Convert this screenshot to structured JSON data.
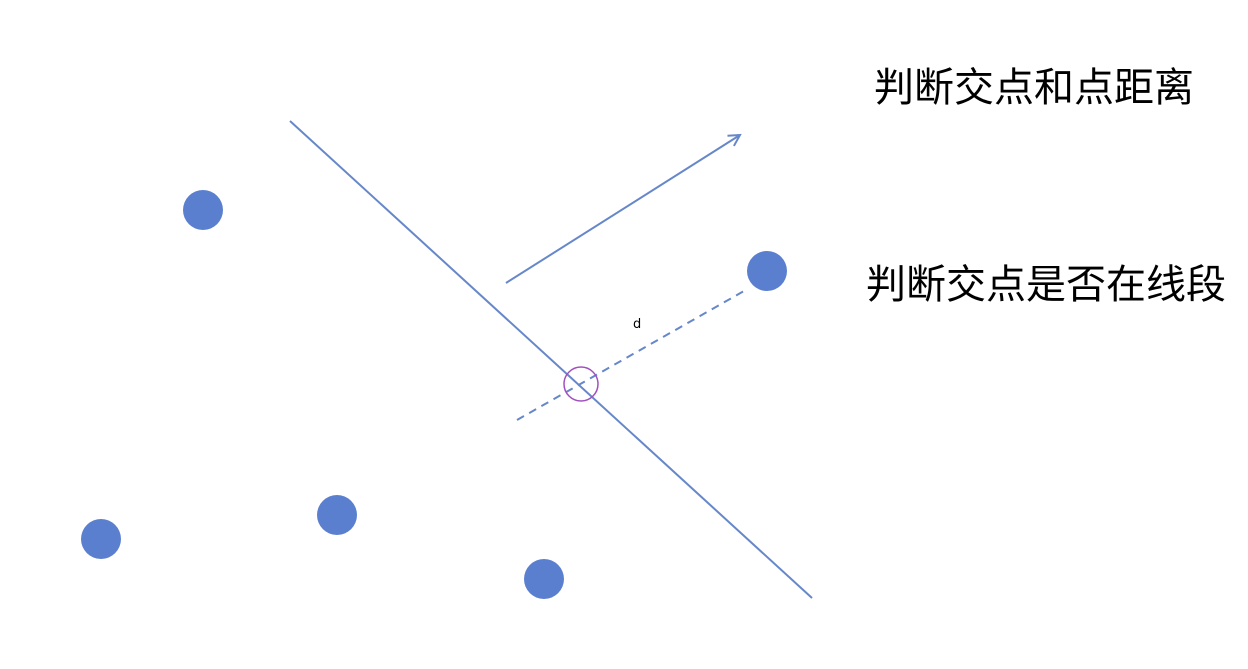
{
  "headings": {
    "distance_check": "判断交点和点距离",
    "segment_check": "判断交点是否在线段"
  },
  "diagram": {
    "distance_label": "d",
    "colors": {
      "point": "#5b7fcf",
      "line": "#6687c9",
      "intersection_circle": "#a14fc0",
      "text": "#000000",
      "background": "#ffffff"
    },
    "points_count": 5,
    "line_style": "solid",
    "perpendicular_style": "dashed",
    "direction_indicator": "arrow"
  }
}
